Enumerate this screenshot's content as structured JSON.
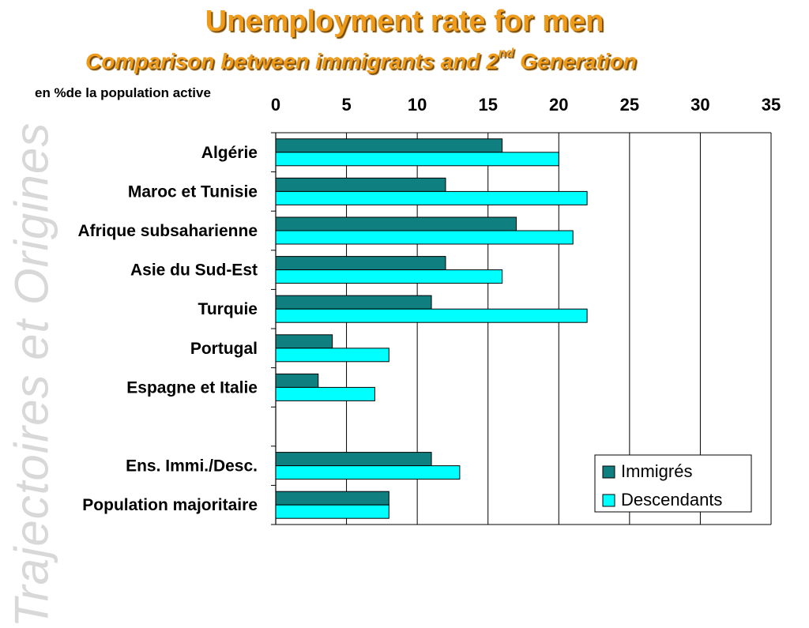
{
  "slide": {
    "title": "Unemployment rate for men",
    "subtitle_main": "Comparison between immigrants and 2",
    "subtitle_sup": "nd",
    "subtitle_end": " Generation",
    "unit_label": "en %de la population active",
    "watermark": "Trajectoires et Origines"
  },
  "chart_data": {
    "type": "bar",
    "orientation": "horizontal",
    "title": "Unemployment rate for men",
    "xlim": [
      0,
      35
    ],
    "xticks": [
      0,
      5,
      10,
      15,
      20,
      25,
      30,
      35
    ],
    "x_axis_position": "top",
    "grid": true,
    "legend_position": "bottom-right",
    "categories": [
      "Algérie",
      "Maroc et Tunisie",
      "Afrique subsaharienne",
      "Asie du Sud-Est",
      "Turquie",
      "Portugal",
      "Espagne et Italie",
      "",
      "Ens. Immi./Desc.",
      "Population  majoritaire"
    ],
    "series": [
      {
        "name": "Immigrés",
        "color": "#0f7f7f",
        "values": [
          16,
          12,
          17,
          12,
          11,
          4,
          3,
          null,
          11,
          8
        ]
      },
      {
        "name": "Descendants",
        "color": "#00ffff",
        "values": [
          20,
          22,
          21,
          16,
          22,
          8,
          7,
          null,
          13,
          8
        ]
      }
    ]
  }
}
